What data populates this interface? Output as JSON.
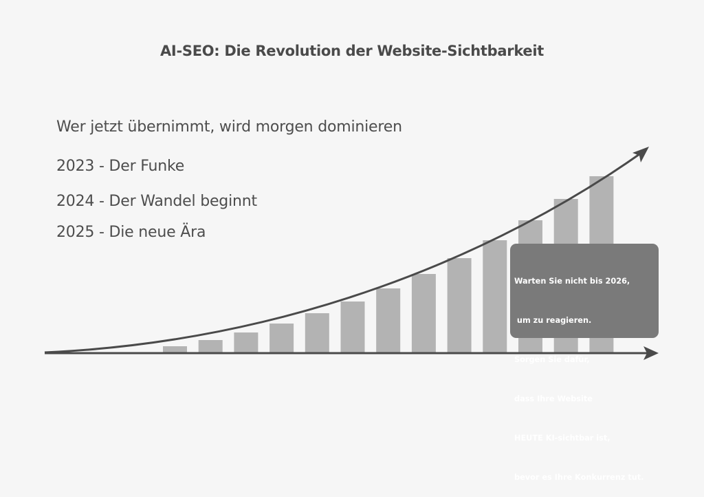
{
  "title": "AI-SEO: Die Revolution der Website-Sichtbarkeit",
  "lines": [
    "Wer jetzt übernimmt, wird morgen dominieren",
    "2023 - Der Funke",
    "2024 - Der Wandel beginnt",
    "2025 - Die neue Ära"
  ],
  "callout": {
    "lines": [
      "Warten Sie nicht bis 2026,",
      " um zu reagieren.",
      "Sorgen Sie dafür,",
      "dass Ihre Website",
      "HEUTE KI-sichtbar ist,",
      "bevor es Ihre Konkurrenz tut."
    ]
  },
  "colors": {
    "bars": "#b3b3b3",
    "arrows": "#4a4a4a",
    "callout": "#7a7a7a",
    "background": "#f6f6f6"
  }
}
